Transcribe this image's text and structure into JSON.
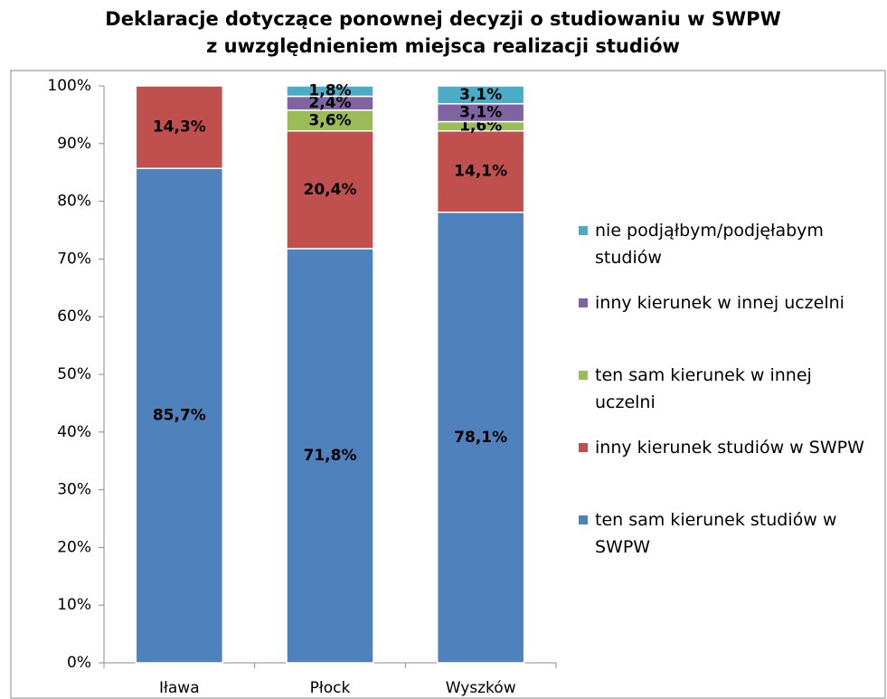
{
  "chart_data": {
    "type": "stacked_bar",
    "title": [
      "Deklaracje dotyczące ponownej decyzji o studiowaniu w SWPW",
      "z uwzględnieniem miejsca realizacji studiów"
    ],
    "categories": [
      "Iława",
      "Płock",
      "Wyszków"
    ],
    "series": [
      {
        "name": "ten sam kierunek studiów w SWPW",
        "color": "#4f81bd",
        "values": [
          85.7,
          71.8,
          78.1
        ],
        "value_labels": [
          "85,7%",
          "71,8%",
          "78,1%"
        ]
      },
      {
        "name": "inny kierunek studiów w SWPW",
        "color": "#c0504d",
        "values": [
          14.3,
          20.4,
          14.1
        ],
        "value_labels": [
          "14,3%",
          "20,4%",
          "14,1%"
        ]
      },
      {
        "name": "ten sam kierunek w innej uczelni",
        "color": "#9bbb59",
        "values": [
          0,
          3.6,
          1.6
        ],
        "value_labels": [
          null,
          "3,6%",
          "1,6%"
        ]
      },
      {
        "name": "inny kierunek w innej uczelni",
        "color": "#8064a2",
        "values": [
          0,
          2.4,
          3.1
        ],
        "value_labels": [
          null,
          "2,4%",
          "3,1%"
        ]
      },
      {
        "name": "nie podjąłbym/podjęłabym studiów",
        "color": "#4bacc6",
        "values": [
          0,
          1.8,
          3.1
        ],
        "value_labels": [
          null,
          "1,8%",
          "3,1%"
        ]
      }
    ],
    "ylim": [
      0,
      100
    ],
    "yticks": [
      {
        "value": 0,
        "label": "0%"
      },
      {
        "value": 10,
        "label": "10%"
      },
      {
        "value": 20,
        "label": "20%"
      },
      {
        "value": 30,
        "label": "30%"
      },
      {
        "value": 40,
        "label": "40%"
      },
      {
        "value": 50,
        "label": "50%"
      },
      {
        "value": 60,
        "label": "60%"
      },
      {
        "value": 70,
        "label": "70%"
      },
      {
        "value": 80,
        "label": "80%"
      },
      {
        "value": 90,
        "label": "90%"
      },
      {
        "value": 100,
        "label": "100%"
      }
    ],
    "legend": "right"
  }
}
